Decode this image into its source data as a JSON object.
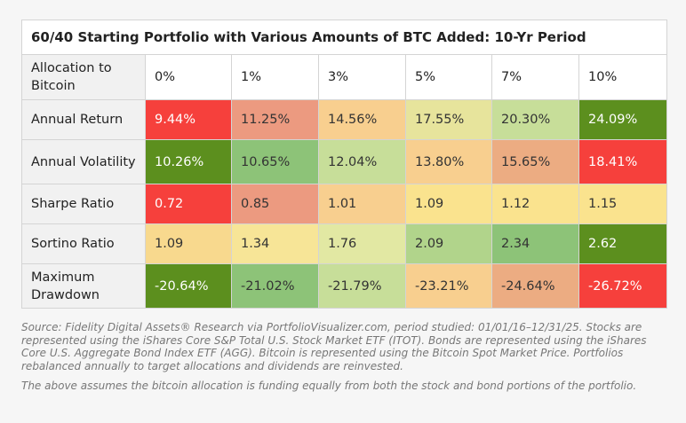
{
  "title": "60/40 Starting Portfolio with Various Amounts of BTC Added: 10-Yr Period",
  "chart_data": {
    "type": "table",
    "title": "60/40 Starting Portfolio with Various Amounts of BTC Added: 10-Yr Period",
    "corner_label": "Allocation to Bitcoin",
    "columns": [
      "0%",
      "1%",
      "3%",
      "5%",
      "7%",
      "10%"
    ],
    "rows": [
      {
        "label": "Annual Return",
        "values": [
          "9.44%",
          "11.25%",
          "14.56%",
          "17.55%",
          "20.30%",
          "24.09%"
        ],
        "colors": [
          "#f6403c",
          "#ec9a80",
          "#f8cf8f",
          "#e7e49c",
          "#c7de99",
          "#5c8f1e"
        ]
      },
      {
        "label": "Annual Volatility",
        "values": [
          "10.26%",
          "10.65%",
          "12.04%",
          "13.80%",
          "15.65%",
          "18.41%"
        ],
        "colors": [
          "#5c8f1e",
          "#8dc378",
          "#c7de99",
          "#f8cf8f",
          "#ecac82",
          "#f6403c"
        ]
      },
      {
        "label": "Sharpe Ratio",
        "values": [
          "0.72",
          "0.85",
          "1.01",
          "1.09",
          "1.12",
          "1.15"
        ],
        "colors": [
          "#f6403c",
          "#ec9a80",
          "#f8cf8f",
          "#fae38e",
          "#fae38e",
          "#fae38e"
        ]
      },
      {
        "label": "Sortino Ratio",
        "values": [
          "1.09",
          "1.34",
          "1.76",
          "2.09",
          "2.34",
          "2.62"
        ],
        "colors": [
          "#f8d98e",
          "#f7e597",
          "#e2e8a3",
          "#b1d48b",
          "#8dc378",
          "#5c8f1e"
        ]
      },
      {
        "label": "Maximum Drawdown",
        "values": [
          "-20.64%",
          "-21.02%",
          "-21.79%",
          "-23.21%",
          "-24.64%",
          "-26.72%"
        ],
        "colors": [
          "#5c8f1e",
          "#8dc378",
          "#c7de99",
          "#f8cf8f",
          "#ecac82",
          "#f6403c"
        ]
      }
    ],
    "light_text_colors": [
      "#f6403c",
      "#5c8f1e"
    ]
  },
  "notes": {
    "source": "Source: Fidelity Digital Assets® Research via PortfolioVisualizer.com, period studied: 01/01/16–12/31/25. Stocks are represented using the iShares Core S&P Total U.S. Stock Market ETF (ITOT). Bonds are represented using the iShares Core U.S. Aggregate Bond Index ETF (AGG). Bitcoin is represented using the Bitcoin Spot Market Price. Portfolios rebalanced annually to target allocations and dividends are reinvested.",
    "assumption": "The above assumes the bitcoin allocation is funding equally from both the stock and bond portions of the portfolio."
  }
}
